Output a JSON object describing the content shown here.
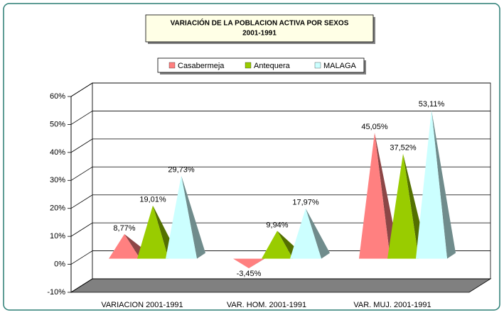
{
  "chart_data": {
    "type": "pyramid3d",
    "title": "VARIACIÓN DE LA POBLACION ACTIVA POR SEXOS",
    "subtitle": "2001-1991",
    "categories": [
      "VARIACION 2001-1991",
      "VAR. HOM. 2001-1991",
      "VAR. MUJ. 2001-1991"
    ],
    "series": [
      {
        "name": "Casabermeja",
        "color": "#ff8080",
        "values": [
          8.77,
          -3.45,
          45.05
        ],
        "value_labels": [
          "8,77%",
          "-3,45%",
          "45,05%"
        ]
      },
      {
        "name": "Antequera",
        "color": "#99cc00",
        "values": [
          19.01,
          9.94,
          37.52
        ],
        "value_labels": [
          "19,01%",
          "9,94%",
          "37,52%"
        ]
      },
      {
        "name": "MALAGA",
        "color": "#ccffff",
        "values": [
          29.73,
          17.97,
          53.11
        ],
        "value_labels": [
          "29,73%",
          "17,97%",
          "53,11%"
        ]
      }
    ],
    "ylim": [
      -10,
      60
    ],
    "yticks": [
      {
        "value": -10,
        "label": "-10%"
      },
      {
        "value": 0,
        "label": "0%"
      },
      {
        "value": 10,
        "label": "10%"
      },
      {
        "value": 20,
        "label": "20%"
      },
      {
        "value": 30,
        "label": "30%"
      },
      {
        "value": 40,
        "label": "40%"
      },
      {
        "value": 50,
        "label": "50%"
      },
      {
        "value": 60,
        "label": "60%"
      }
    ],
    "grid": true,
    "legend": "top"
  }
}
